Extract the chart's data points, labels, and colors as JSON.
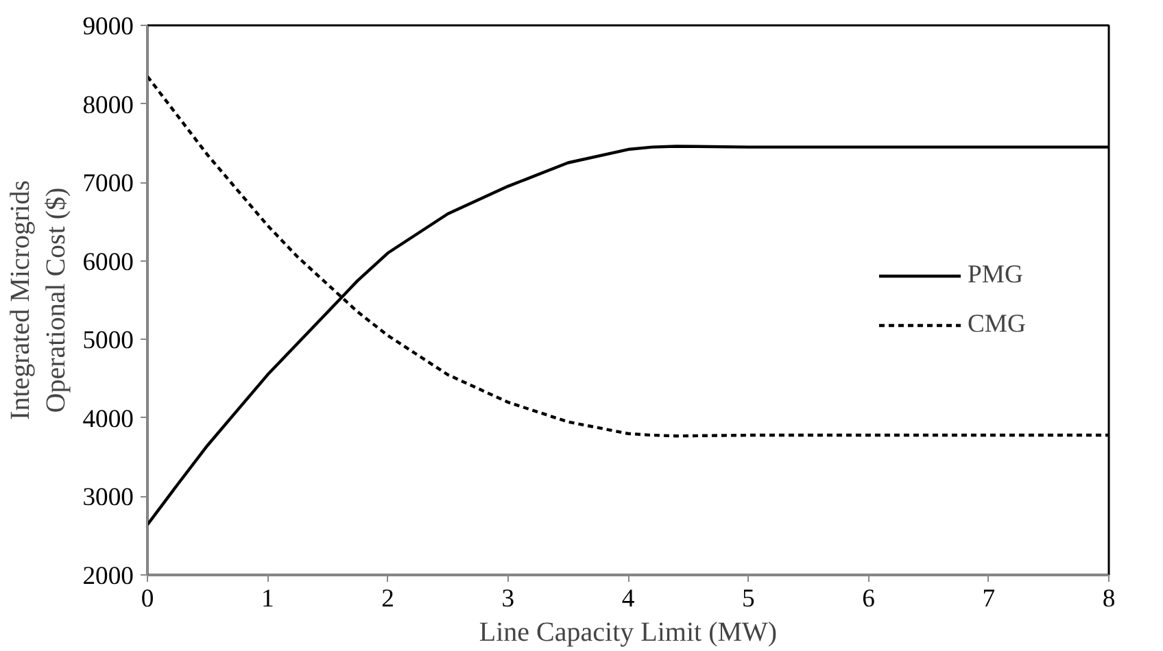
{
  "chart_data": {
    "type": "line",
    "xlabel": "Line Capacity Limit (MW)",
    "ylabel": "Integrated Microgrids\nOperational Cost ($)",
    "xlim": [
      0,
      8
    ],
    "ylim": [
      2000,
      9000
    ],
    "xticks": [
      0,
      1,
      2,
      3,
      4,
      5,
      6,
      7,
      8
    ],
    "yticks": [
      2000,
      3000,
      4000,
      5000,
      6000,
      7000,
      8000,
      9000
    ],
    "grid": false,
    "legend": "right",
    "marker": "none",
    "series": [
      {
        "name": "PMG",
        "color": "#000000",
        "line_style": "solid",
        "x": [
          0,
          0.25,
          0.5,
          0.75,
          1,
          1.25,
          1.5,
          1.75,
          2,
          2.5,
          3,
          3.5,
          4,
          4.2,
          4.4,
          5,
          6,
          7,
          8
        ],
        "values": [
          2640,
          3150,
          3650,
          4100,
          4550,
          4950,
          5350,
          5750,
          6100,
          6600,
          6950,
          7250,
          7420,
          7450,
          7460,
          7450,
          7450,
          7450,
          7450
        ]
      },
      {
        "name": "CMG",
        "color": "#000000",
        "line_style": "dashed",
        "x": [
          0,
          0.25,
          0.5,
          0.75,
          1,
          1.25,
          1.5,
          1.75,
          2,
          2.5,
          3,
          3.5,
          4,
          4.2,
          4.4,
          5,
          6,
          7,
          8
        ],
        "values": [
          8350,
          7850,
          7350,
          6900,
          6450,
          6050,
          5700,
          5350,
          5050,
          4550,
          4200,
          3950,
          3800,
          3780,
          3770,
          3780,
          3780,
          3780,
          3780
        ]
      }
    ]
  }
}
